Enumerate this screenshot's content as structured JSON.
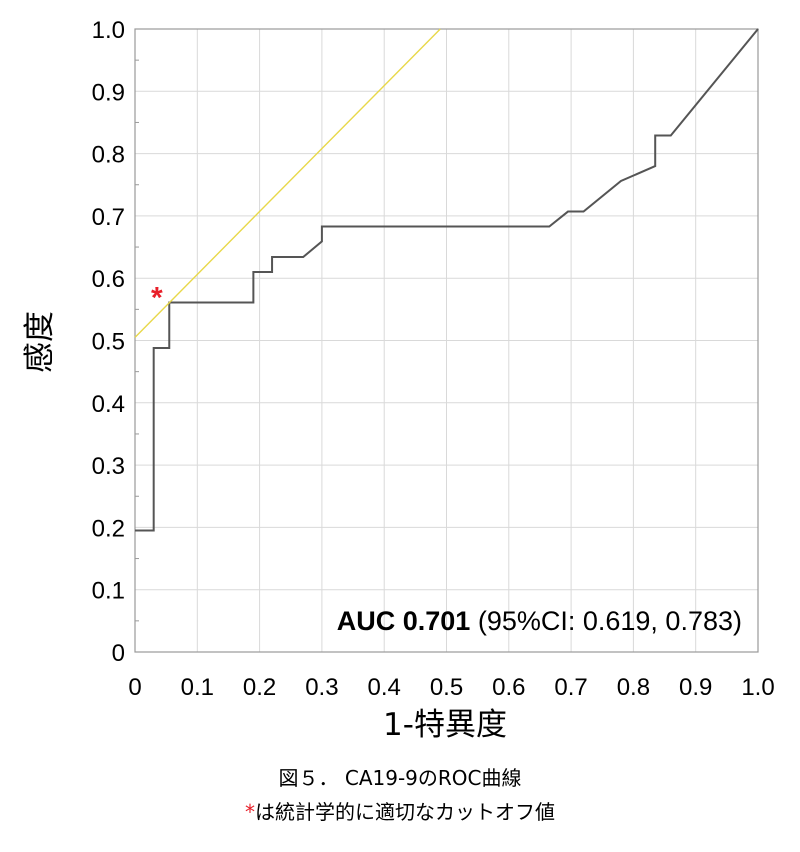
{
  "chart_data": {
    "type": "line",
    "xlabel": "1-特異度",
    "ylabel": "感度",
    "xlim": [
      0,
      1
    ],
    "ylim": [
      0,
      1
    ],
    "grid": true,
    "x_ticks": [
      "0",
      "0.1",
      "0.2",
      "0.3",
      "0.4",
      "0.5",
      "0.6",
      "0.7",
      "0.8",
      "0.9",
      "1.0"
    ],
    "y_ticks": [
      "0",
      "0.1",
      "0.2",
      "0.3",
      "0.4",
      "0.5",
      "0.6",
      "0.7",
      "0.8",
      "0.9",
      "1.0"
    ],
    "series": [
      {
        "color": "#555555",
        "x": [
          0,
          0.03,
          0.03,
          0.055,
          0.055,
          0.19,
          0.19,
          0.22,
          0.22,
          0.27,
          0.3,
          0.3,
          0.665,
          0.695,
          0.72,
          0.78,
          0.835,
          0.835,
          0.86,
          1.0
        ],
        "y": [
          0.195,
          0.195,
          0.488,
          0.488,
          0.561,
          0.561,
          0.61,
          0.61,
          0.634,
          0.634,
          0.659,
          0.683,
          0.683,
          0.707,
          0.707,
          0.756,
          0.78,
          0.829,
          0.829,
          1.0
        ]
      },
      {
        "color": "#e8d84a",
        "x": [
          0,
          0.49
        ],
        "y": [
          0.505,
          1.0
        ]
      }
    ],
    "annotations": [
      {
        "text": "*",
        "x": 0.035,
        "y": 0.582,
        "color": "#e8202a"
      }
    ],
    "auc": {
      "label": "AUC 0.701",
      "ci": "(95%CI: 0.619, 0.783)"
    }
  },
  "caption": {
    "line1": "図５．  CA19-9のROC曲線",
    "line2_marker": "*",
    "line2_text": "は統計学的に適切なカットオフ値"
  }
}
